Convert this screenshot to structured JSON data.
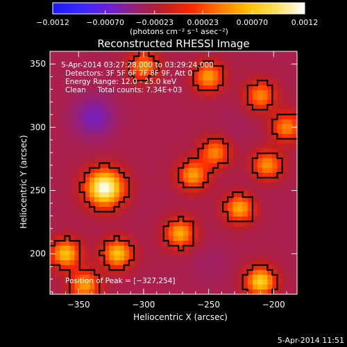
{
  "chart_data": {
    "type": "heatmap",
    "title": "Reconstructed RHESSI Image",
    "xlabel": "Heliocentric X (arcsec)",
    "ylabel": "Heliocentric Y (arcsec)",
    "xlim": [
      -372,
      -182
    ],
    "ylim": [
      168,
      360
    ],
    "x_ticks": [
      -350,
      -300,
      -250,
      -200
    ],
    "x_tick_labels": [
      "−350",
      "−300",
      "−250",
      "−200"
    ],
    "y_ticks": [
      200,
      250,
      300,
      350
    ],
    "y_tick_labels": [
      "200",
      "250",
      "300",
      "350"
    ],
    "colorbar": {
      "ticks": [
        -0.0012,
        -0.0007,
        -0.00023,
        0.00023,
        0.0007,
        0.0012
      ],
      "tick_labels": [
        "−0.0012",
        "−0.00070",
        "−0.00023",
        "0.00023",
        "0.00070",
        "0.0012"
      ],
      "label": "(photons cm⁻² s⁻¹ asec⁻²)",
      "colors": [
        "#1a1aff",
        "#3a28ff",
        "#6a1fd8",
        "#9a2070",
        "#c02020",
        "#ff2a00",
        "#ff7a00",
        "#ffc000",
        "#ffe060",
        "#ffffff"
      ]
    },
    "annotations": [
      " 5-Apr-2014 03:27:28.000 to 03:29:24.000",
      "Detectors: 3F 5F 6F 7F 8F 9F, Att 0",
      "Energy Range: 12.0 - 25.0 keV",
      "Clean     Total counts: 7.34E+03"
    ],
    "peak_label": "Position of Peak = [−327,254]",
    "peak": [
      -327,
      254
    ],
    "peak_value": 0.0012,
    "colorbar_range": [
      -0.0012,
      0.0012
    ],
    "sources": [
      {
        "x": -330,
        "y": 252,
        "peak": 0.0012
      },
      {
        "x": -262,
        "y": 262,
        "peak": 0.00055
      },
      {
        "x": -226,
        "y": 236,
        "peak": 0.0006
      },
      {
        "x": -272,
        "y": 216,
        "peak": 0.0006
      },
      {
        "x": -300,
        "y": 348,
        "peak": 0.00045
      },
      {
        "x": -250,
        "y": 340,
        "peak": 0.00055
      },
      {
        "x": -320,
        "y": 200,
        "peak": 0.0007
      },
      {
        "x": -210,
        "y": 178,
        "peak": 0.0008
      },
      {
        "x": -360,
        "y": 200,
        "peak": 0.0007
      },
      {
        "x": -205,
        "y": 270,
        "peak": 0.0005
      },
      {
        "x": -190,
        "y": 300,
        "peak": 0.00045
      },
      {
        "x": -210,
        "y": 325,
        "peak": 0.00045
      },
      {
        "x": -345,
        "y": 175,
        "peak": 0.00055
      },
      {
        "x": -245,
        "y": 280,
        "peak": 0.00045
      }
    ],
    "negative_sources": [
      {
        "x": -338,
        "y": 308,
        "peak": -0.0008
      },
      {
        "x": -248,
        "y": 192,
        "peak": -0.0004
      },
      {
        "x": -215,
        "y": 248,
        "peak": -0.00035
      },
      {
        "x": -300,
        "y": 240,
        "peak": -0.0003
      },
      {
        "x": -230,
        "y": 300,
        "peak": -0.00035
      }
    ]
  },
  "footer_timestamp": "5-Apr-2014 11:51"
}
